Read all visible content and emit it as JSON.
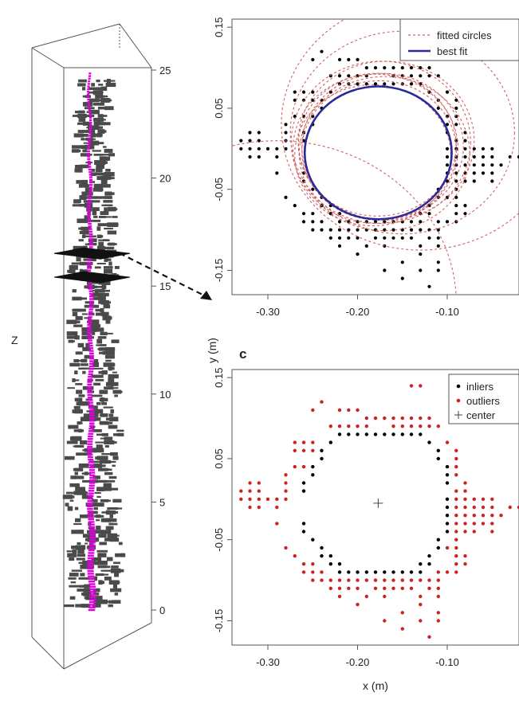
{
  "chart_data": [
    {
      "type": "scatter",
      "panel": "3d-point-cloud",
      "zlabel": "Z",
      "z_ticks": [
        "25",
        "20",
        "15",
        "10",
        "5",
        "0"
      ],
      "z_tick_values": [
        25,
        20,
        15,
        10,
        5,
        0
      ],
      "zlim": [
        -1,
        26
      ],
      "series": [
        {
          "role": "tree-points",
          "color": "#4a4a4a"
        },
        {
          "role": "stem-points",
          "color": "#e000e0"
        }
      ],
      "slice_heights": [
        16.4,
        15.3
      ],
      "annotation": "arrow from slice to circle-fit panel"
    },
    {
      "type": "scatter",
      "panel": "circle-fits",
      "xlim": [
        -0.34,
        -0.02
      ],
      "ylim": [
        -0.18,
        0.16
      ],
      "x_ticks": [
        "-0.30",
        "-0.20",
        "-0.10"
      ],
      "x_tick_values": [
        -0.3,
        -0.2,
        -0.1
      ],
      "y_ticks": [
        "0.15",
        "0.05",
        "-0.05",
        "-0.15"
      ],
      "y_tick_values": [
        0.15,
        0.05,
        -0.05,
        -0.15
      ],
      "legend": [
        {
          "label": "fitted circles",
          "color": "#d06060",
          "style": "dashed"
        },
        {
          "label": "best fit",
          "color": "#2a2a9a",
          "style": "solid"
        }
      ],
      "legend_position": "top-right",
      "point_color": "#000000",
      "best_fit": {
        "cx": -0.177,
        "cy": -0.005,
        "r": 0.082
      },
      "fitted_circles": [
        {
          "cx": -0.176,
          "cy": -0.002,
          "r": 0.086
        },
        {
          "cx": -0.172,
          "cy": 0.003,
          "r": 0.09
        },
        {
          "cx": -0.18,
          "cy": 0.0,
          "r": 0.092
        },
        {
          "cx": -0.178,
          "cy": 0.005,
          "r": 0.088
        },
        {
          "cx": -0.17,
          "cy": -0.006,
          "r": 0.095
        },
        {
          "cx": -0.168,
          "cy": 0.01,
          "r": 0.098
        },
        {
          "cx": -0.183,
          "cy": -0.008,
          "r": 0.087
        },
        {
          "cx": -0.174,
          "cy": 0.008,
          "r": 0.1
        },
        {
          "cx": -0.15,
          "cy": 0.02,
          "r": 0.125
        },
        {
          "cx": -0.13,
          "cy": 0.03,
          "r": 0.155
        },
        {
          "cx": -0.29,
          "cy": -0.19,
          "r": 0.2
        }
      ]
    },
    {
      "type": "scatter",
      "panel": "inlier-outlier",
      "panel_label": "c",
      "xlabel": "x (m)",
      "ylabel": "y (m)",
      "xlim": [
        -0.34,
        -0.02
      ],
      "ylim": [
        -0.18,
        0.16
      ],
      "x_ticks": [
        "-0.30",
        "-0.20",
        "-0.10"
      ],
      "x_tick_values": [
        -0.3,
        -0.2,
        -0.1
      ],
      "y_ticks": [
        "0.15",
        "0.05",
        "-0.05",
        "-0.15"
      ],
      "y_tick_values": [
        0.15,
        0.05,
        -0.05,
        -0.15
      ],
      "legend": [
        {
          "label": "inliers",
          "color": "#000000",
          "marker": "dot"
        },
        {
          "label": "outliers",
          "color": "#cc2222",
          "marker": "dot"
        },
        {
          "label": "center",
          "color": "#444444",
          "marker": "plus"
        }
      ],
      "legend_position": "top-right",
      "center": [
        -0.177,
        -0.005
      ],
      "inliers": [
        [
          -0.22,
          0.08
        ],
        [
          -0.21,
          0.08
        ],
        [
          -0.2,
          0.08
        ],
        [
          -0.19,
          0.08
        ],
        [
          -0.18,
          0.08
        ],
        [
          -0.17,
          0.08
        ],
        [
          -0.16,
          0.08
        ],
        [
          -0.15,
          0.08
        ],
        [
          -0.14,
          0.08
        ],
        [
          -0.13,
          0.08
        ],
        [
          -0.23,
          0.07
        ],
        [
          -0.24,
          0.06
        ],
        [
          -0.24,
          0.05
        ],
        [
          -0.25,
          0.04
        ],
        [
          -0.25,
          0.03
        ],
        [
          -0.26,
          0.02
        ],
        [
          -0.26,
          0.01
        ],
        [
          -0.12,
          0.07
        ],
        [
          -0.11,
          0.06
        ],
        [
          -0.11,
          0.05
        ],
        [
          -0.1,
          0.04
        ],
        [
          -0.1,
          0.03
        ],
        [
          -0.1,
          0.02
        ],
        [
          -0.1,
          0.0
        ],
        [
          -0.1,
          -0.01
        ],
        [
          -0.1,
          -0.02
        ],
        [
          -0.1,
          -0.03
        ],
        [
          -0.1,
          -0.04
        ],
        [
          -0.11,
          -0.05
        ],
        [
          -0.11,
          -0.06
        ],
        [
          -0.12,
          -0.07
        ],
        [
          -0.26,
          -0.03
        ],
        [
          -0.26,
          -0.04
        ],
        [
          -0.25,
          -0.05
        ],
        [
          -0.24,
          -0.06
        ],
        [
          -0.24,
          -0.07
        ],
        [
          -0.23,
          -0.08
        ],
        [
          -0.22,
          -0.09
        ],
        [
          -0.21,
          -0.09
        ],
        [
          -0.2,
          -0.09
        ],
        [
          -0.19,
          -0.09
        ],
        [
          -0.18,
          -0.09
        ],
        [
          -0.17,
          -0.09
        ],
        [
          -0.16,
          -0.09
        ],
        [
          -0.15,
          -0.09
        ],
        [
          -0.14,
          -0.09
        ],
        [
          -0.13,
          -0.09
        ],
        [
          -0.23,
          -0.07
        ],
        [
          -0.22,
          -0.08
        ],
        [
          -0.13,
          -0.08
        ],
        [
          -0.12,
          -0.08
        ]
      ],
      "outliers": [
        [
          -0.14,
          0.14
        ],
        [
          -0.13,
          0.14
        ],
        [
          -0.24,
          0.12
        ],
        [
          -0.25,
          0.11
        ],
        [
          -0.22,
          0.11
        ],
        [
          -0.21,
          0.11
        ],
        [
          -0.2,
          0.11
        ],
        [
          -0.19,
          0.1
        ],
        [
          -0.18,
          0.1
        ],
        [
          -0.17,
          0.1
        ],
        [
          -0.16,
          0.1
        ],
        [
          -0.15,
          0.1
        ],
        [
          -0.14,
          0.1
        ],
        [
          -0.13,
          0.1
        ],
        [
          -0.12,
          0.1
        ],
        [
          -0.2,
          0.09
        ],
        [
          -0.19,
          0.09
        ],
        [
          -0.16,
          0.09
        ],
        [
          -0.15,
          0.09
        ],
        [
          -0.14,
          0.09
        ],
        [
          -0.13,
          0.09
        ],
        [
          -0.12,
          0.09
        ],
        [
          -0.11,
          0.09
        ],
        [
          -0.27,
          0.07
        ],
        [
          -0.26,
          0.07
        ],
        [
          -0.25,
          0.07
        ],
        [
          -0.23,
          0.09
        ],
        [
          -0.22,
          0.09
        ],
        [
          -0.21,
          0.09
        ],
        [
          -0.27,
          0.06
        ],
        [
          -0.26,
          0.06
        ],
        [
          -0.25,
          0.06
        ],
        [
          -0.1,
          0.07
        ],
        [
          -0.09,
          0.06
        ],
        [
          -0.09,
          0.05
        ],
        [
          -0.27,
          0.04
        ],
        [
          -0.26,
          0.04
        ],
        [
          -0.28,
          0.03
        ],
        [
          -0.28,
          0.02
        ],
        [
          -0.09,
          0.04
        ],
        [
          -0.09,
          0.03
        ],
        [
          -0.08,
          0.02
        ],
        [
          -0.31,
          0.02
        ],
        [
          -0.32,
          0.02
        ],
        [
          -0.33,
          0.01
        ],
        [
          -0.32,
          0.01
        ],
        [
          -0.31,
          0.01
        ],
        [
          -0.28,
          0.01
        ],
        [
          -0.33,
          0.0
        ],
        [
          -0.32,
          0.0
        ],
        [
          -0.31,
          0.0
        ],
        [
          -0.3,
          0.0
        ],
        [
          -0.29,
          0.0
        ],
        [
          -0.28,
          0.0
        ],
        [
          -0.32,
          -0.01
        ],
        [
          -0.31,
          -0.01
        ],
        [
          -0.29,
          -0.01
        ],
        [
          -0.09,
          0.01
        ],
        [
          -0.08,
          0.01
        ],
        [
          -0.09,
          0.0
        ],
        [
          -0.08,
          0.0
        ],
        [
          -0.07,
          0.0
        ],
        [
          -0.06,
          0.0
        ],
        [
          -0.05,
          0.0
        ],
        [
          -0.09,
          -0.01
        ],
        [
          -0.08,
          -0.01
        ],
        [
          -0.07,
          -0.01
        ],
        [
          -0.06,
          -0.01
        ],
        [
          -0.05,
          -0.01
        ],
        [
          -0.03,
          -0.01
        ],
        [
          -0.09,
          -0.02
        ],
        [
          -0.08,
          -0.02
        ],
        [
          -0.07,
          -0.02
        ],
        [
          -0.06,
          -0.02
        ],
        [
          -0.05,
          -0.02
        ],
        [
          -0.04,
          -0.02
        ],
        [
          -0.09,
          -0.03
        ],
        [
          -0.08,
          -0.03
        ],
        [
          -0.07,
          -0.03
        ],
        [
          -0.06,
          -0.03
        ],
        [
          -0.05,
          -0.03
        ],
        [
          -0.09,
          -0.04
        ],
        [
          -0.08,
          -0.04
        ],
        [
          -0.07,
          -0.04
        ],
        [
          -0.05,
          -0.04
        ],
        [
          -0.29,
          -0.03
        ],
        [
          -0.28,
          -0.06
        ],
        [
          -0.27,
          -0.07
        ],
        [
          -0.26,
          -0.08
        ],
        [
          -0.25,
          -0.08
        ],
        [
          -0.09,
          -0.05
        ],
        [
          -0.1,
          -0.06
        ],
        [
          -0.09,
          -0.06
        ],
        [
          -0.09,
          -0.07
        ],
        [
          -0.08,
          -0.07
        ],
        [
          -0.09,
          -0.08
        ],
        [
          -0.08,
          -0.08
        ],
        [
          -0.26,
          -0.09
        ],
        [
          -0.25,
          -0.09
        ],
        [
          -0.24,
          -0.09
        ],
        [
          -0.11,
          -0.09
        ],
        [
          -0.1,
          -0.09
        ],
        [
          -0.09,
          -0.09
        ],
        [
          -0.25,
          -0.1
        ],
        [
          -0.24,
          -0.1
        ],
        [
          -0.23,
          -0.1
        ],
        [
          -0.22,
          -0.1
        ],
        [
          -0.21,
          -0.1
        ],
        [
          -0.2,
          -0.1
        ],
        [
          -0.19,
          -0.1
        ],
        [
          -0.18,
          -0.1
        ],
        [
          -0.17,
          -0.1
        ],
        [
          -0.16,
          -0.1
        ],
        [
          -0.15,
          -0.1
        ],
        [
          -0.14,
          -0.1
        ],
        [
          -0.13,
          -0.1
        ],
        [
          -0.12,
          -0.1
        ],
        [
          -0.11,
          -0.1
        ],
        [
          -0.23,
          -0.11
        ],
        [
          -0.22,
          -0.11
        ],
        [
          -0.21,
          -0.11
        ],
        [
          -0.2,
          -0.11
        ],
        [
          -0.18,
          -0.11
        ],
        [
          -0.17,
          -0.11
        ],
        [
          -0.16,
          -0.11
        ],
        [
          -0.15,
          -0.11
        ],
        [
          -0.14,
          -0.11
        ],
        [
          -0.12,
          -0.11
        ],
        [
          -0.11,
          -0.11
        ],
        [
          -0.22,
          -0.12
        ],
        [
          -0.19,
          -0.12
        ],
        [
          -0.17,
          -0.12
        ],
        [
          -0.13,
          -0.12
        ],
        [
          -0.11,
          -0.12
        ],
        [
          -0.2,
          -0.13
        ],
        [
          -0.13,
          -0.13
        ],
        [
          -0.15,
          -0.14
        ],
        [
          -0.11,
          -0.14
        ],
        [
          -0.17,
          -0.15
        ],
        [
          -0.13,
          -0.15
        ],
        [
          -0.11,
          -0.15
        ],
        [
          -0.15,
          -0.16
        ],
        [
          -0.12,
          -0.17
        ],
        [
          -0.02,
          -0.01
        ]
      ]
    }
  ]
}
